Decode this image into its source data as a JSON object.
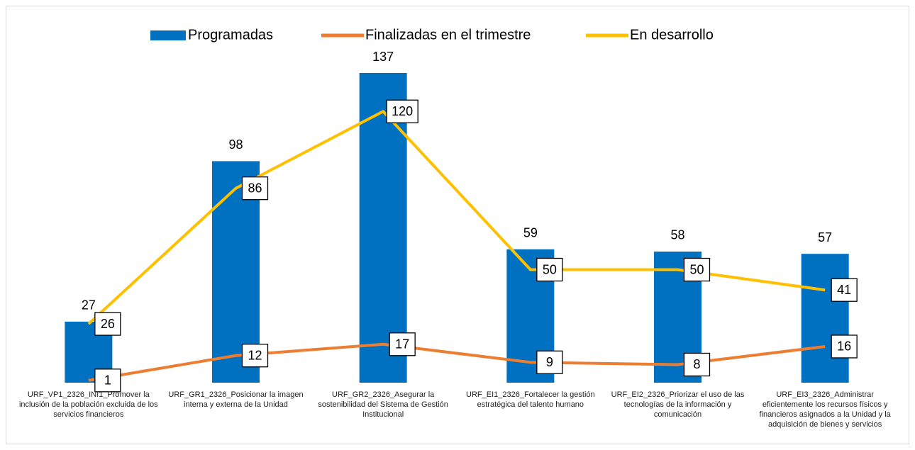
{
  "chart_data": {
    "type": "bar-line",
    "categories": [
      "URF_VP1_2326_INI1_Promover la inclusión de la población excluida de los servicios financieros",
      "URF_GR1_2326_Posicionar la imagen interna y externa de la Unidad",
      "URF_GR2_2326_Asegurar la sostenibilidad del Sistema de Gestión Institucional",
      "URF_EI1_2326_Fortalecer la gestión estratégica del talento humano",
      "URF_EI2_2326_Priorizar el uso de las tecnologías de la información y comunicación",
      "URF_EI3_2326_Administrar eficientemente los recursos físicos y financieros asignados  a la Unidad y la adquisición de bienes y servicios"
    ],
    "series": [
      {
        "name": "Programadas",
        "type": "bar",
        "color": "#0070c0",
        "values": [
          27,
          98,
          137,
          59,
          58,
          57
        ]
      },
      {
        "name": "Finalizadas en el trimestre",
        "type": "line",
        "color": "#ed7d31",
        "values": [
          1,
          12,
          17,
          9,
          8,
          16
        ]
      },
      {
        "name": "En desarrollo",
        "type": "line",
        "color": "#ffc000",
        "values": [
          26,
          86,
          120,
          50,
          50,
          41
        ]
      }
    ],
    "legend": "top"
  }
}
